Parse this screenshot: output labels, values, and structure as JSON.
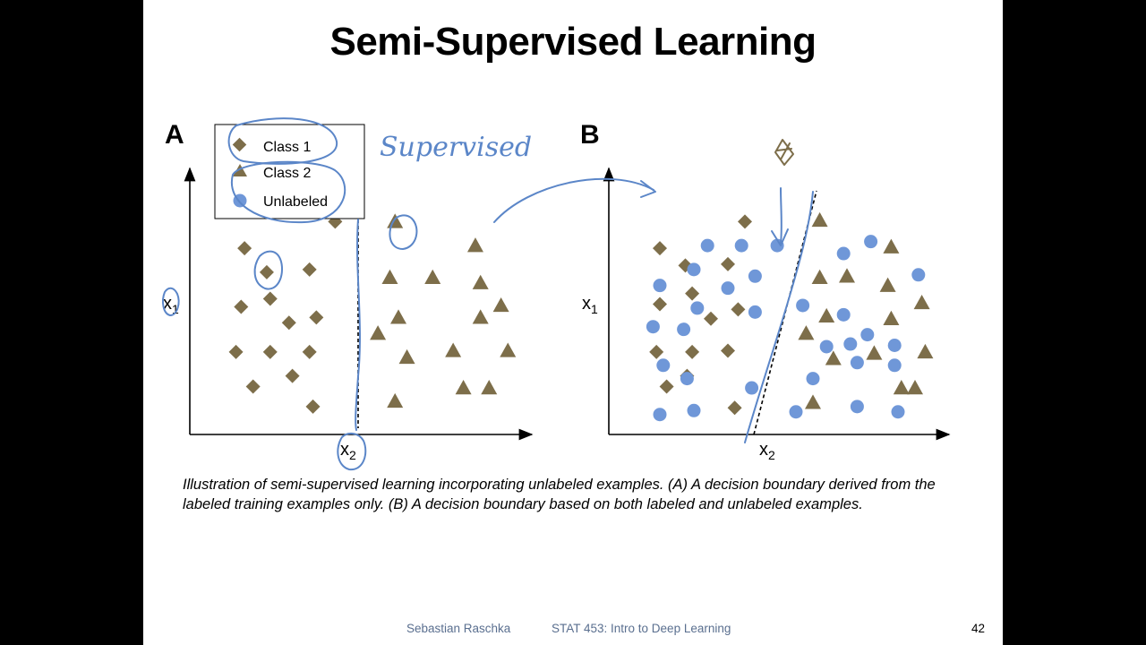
{
  "slide": {
    "title": "Semi-Supervised Learning",
    "caption": "Illustration of semi-supervised learning incorporating unlabeled examples. (A) A decision boundary derived from the labeled training examples only. (B) A decision boundary based on both labeled and unlabeled examples.",
    "footer_author": "Sebastian Raschka",
    "footer_course": "STAT 453: Intro to Deep Learning",
    "page_number": "42"
  },
  "annotation": {
    "handwritten_note": "Supervised"
  },
  "colors": {
    "class1": "#7d6e4a",
    "class2": "#7d6e4a",
    "unlabeled": "#6f97d8",
    "ink": "#5b86c8"
  },
  "chart_data": [
    {
      "type": "scatter",
      "panel_label": "A",
      "xlabel": "x2",
      "ylabel": "x1",
      "xlim": [
        0,
        10
      ],
      "ylim": [
        0,
        10
      ],
      "legend": {
        "placement": "top-left",
        "entries": [
          {
            "label": "Class 1",
            "marker": "diamond"
          },
          {
            "label": "Class 2",
            "marker": "triangle"
          },
          {
            "label": "Unlabeled",
            "marker": "circle"
          }
        ]
      },
      "series": [
        {
          "name": "Class 1",
          "marker": "diamond",
          "points": [
            [
              4.25,
              8.0
            ],
            [
              1.6,
              7.0
            ],
            [
              2.25,
              6.1
            ],
            [
              3.5,
              6.2
            ],
            [
              2.35,
              5.1
            ],
            [
              1.5,
              4.8
            ],
            [
              3.7,
              4.4
            ],
            [
              2.9,
              4.2
            ],
            [
              1.35,
              3.1
            ],
            [
              2.35,
              3.1
            ],
            [
              3.5,
              3.1
            ],
            [
              1.85,
              1.8
            ],
            [
              3.0,
              2.2
            ],
            [
              3.6,
              1.05
            ]
          ]
        },
        {
          "name": "Class 2",
          "marker": "triangle",
          "points": [
            [
              6.0,
              8.0
            ],
            [
              5.85,
              5.9
            ],
            [
              7.1,
              5.9
            ],
            [
              8.35,
              7.1
            ],
            [
              8.5,
              5.7
            ],
            [
              6.1,
              4.4
            ],
            [
              8.5,
              4.4
            ],
            [
              9.1,
              4.85
            ],
            [
              5.5,
              3.8
            ],
            [
              6.35,
              2.9
            ],
            [
              7.7,
              3.15
            ],
            [
              9.3,
              3.15
            ],
            [
              6.0,
              1.25
            ],
            [
              8.0,
              1.75
            ],
            [
              8.75,
              1.75
            ]
          ]
        }
      ],
      "boundary": {
        "style": "dashed",
        "x": 4.55
      }
    },
    {
      "type": "scatter",
      "panel_label": "B",
      "xlabel": "x2",
      "ylabel": "x1",
      "xlim": [
        0,
        10
      ],
      "ylim": [
        0,
        10
      ],
      "series": [
        {
          "name": "Class 1",
          "marker": "diamond",
          "points": [
            [
              1.5,
              7.0
            ],
            [
              4.0,
              8.0
            ],
            [
              2.25,
              6.35
            ],
            [
              3.5,
              6.4
            ],
            [
              2.45,
              5.3
            ],
            [
              1.5,
              4.9
            ],
            [
              3.8,
              4.7
            ],
            [
              3.0,
              4.35
            ],
            [
              1.4,
              3.1
            ],
            [
              2.45,
              3.1
            ],
            [
              3.5,
              3.15
            ],
            [
              1.7,
              1.8
            ],
            [
              2.3,
              2.2
            ],
            [
              3.7,
              1.0
            ]
          ]
        },
        {
          "name": "Class 2",
          "marker": "triangle",
          "points": [
            [
              6.2,
              8.05
            ],
            [
              8.3,
              7.05
            ],
            [
              6.2,
              5.9
            ],
            [
              7.0,
              5.95
            ],
            [
              8.2,
              5.6
            ],
            [
              9.2,
              4.95
            ],
            [
              6.4,
              4.45
            ],
            [
              8.3,
              4.35
            ],
            [
              5.8,
              3.8
            ],
            [
              6.6,
              2.85
            ],
            [
              7.8,
              3.05
            ],
            [
              9.3,
              3.1
            ],
            [
              6.0,
              1.2
            ],
            [
              8.6,
              1.75
            ],
            [
              9.0,
              1.75
            ]
          ]
        },
        {
          "name": "Unlabeled",
          "marker": "circle",
          "points": [
            [
              2.9,
              7.1
            ],
            [
              3.9,
              7.1
            ],
            [
              4.95,
              7.1
            ],
            [
              6.9,
              6.8
            ],
            [
              7.7,
              7.25
            ],
            [
              2.5,
              6.2
            ],
            [
              1.5,
              5.6
            ],
            [
              3.5,
              5.5
            ],
            [
              4.3,
              5.95
            ],
            [
              9.1,
              6.0
            ],
            [
              2.6,
              4.75
            ],
            [
              4.3,
              4.6
            ],
            [
              5.7,
              4.85
            ],
            [
              6.9,
              4.5
            ],
            [
              1.3,
              4.05
            ],
            [
              2.2,
              3.95
            ],
            [
              7.1,
              3.4
            ],
            [
              7.6,
              3.75
            ],
            [
              8.4,
              3.35
            ],
            [
              6.4,
              3.3
            ],
            [
              6.0,
              2.1
            ],
            [
              7.3,
              2.7
            ],
            [
              8.4,
              2.6
            ],
            [
              2.3,
              2.1
            ],
            [
              1.6,
              2.6
            ],
            [
              4.2,
              1.75
            ],
            [
              1.5,
              0.75
            ],
            [
              2.5,
              0.9
            ],
            [
              5.5,
              0.85
            ],
            [
              7.3,
              1.05
            ],
            [
              8.5,
              0.85
            ]
          ]
        }
      ],
      "boundary": {
        "style": "dashed",
        "from": [
          4.7,
          0
        ],
        "to": [
          6.2,
          9.7
        ]
      }
    }
  ]
}
